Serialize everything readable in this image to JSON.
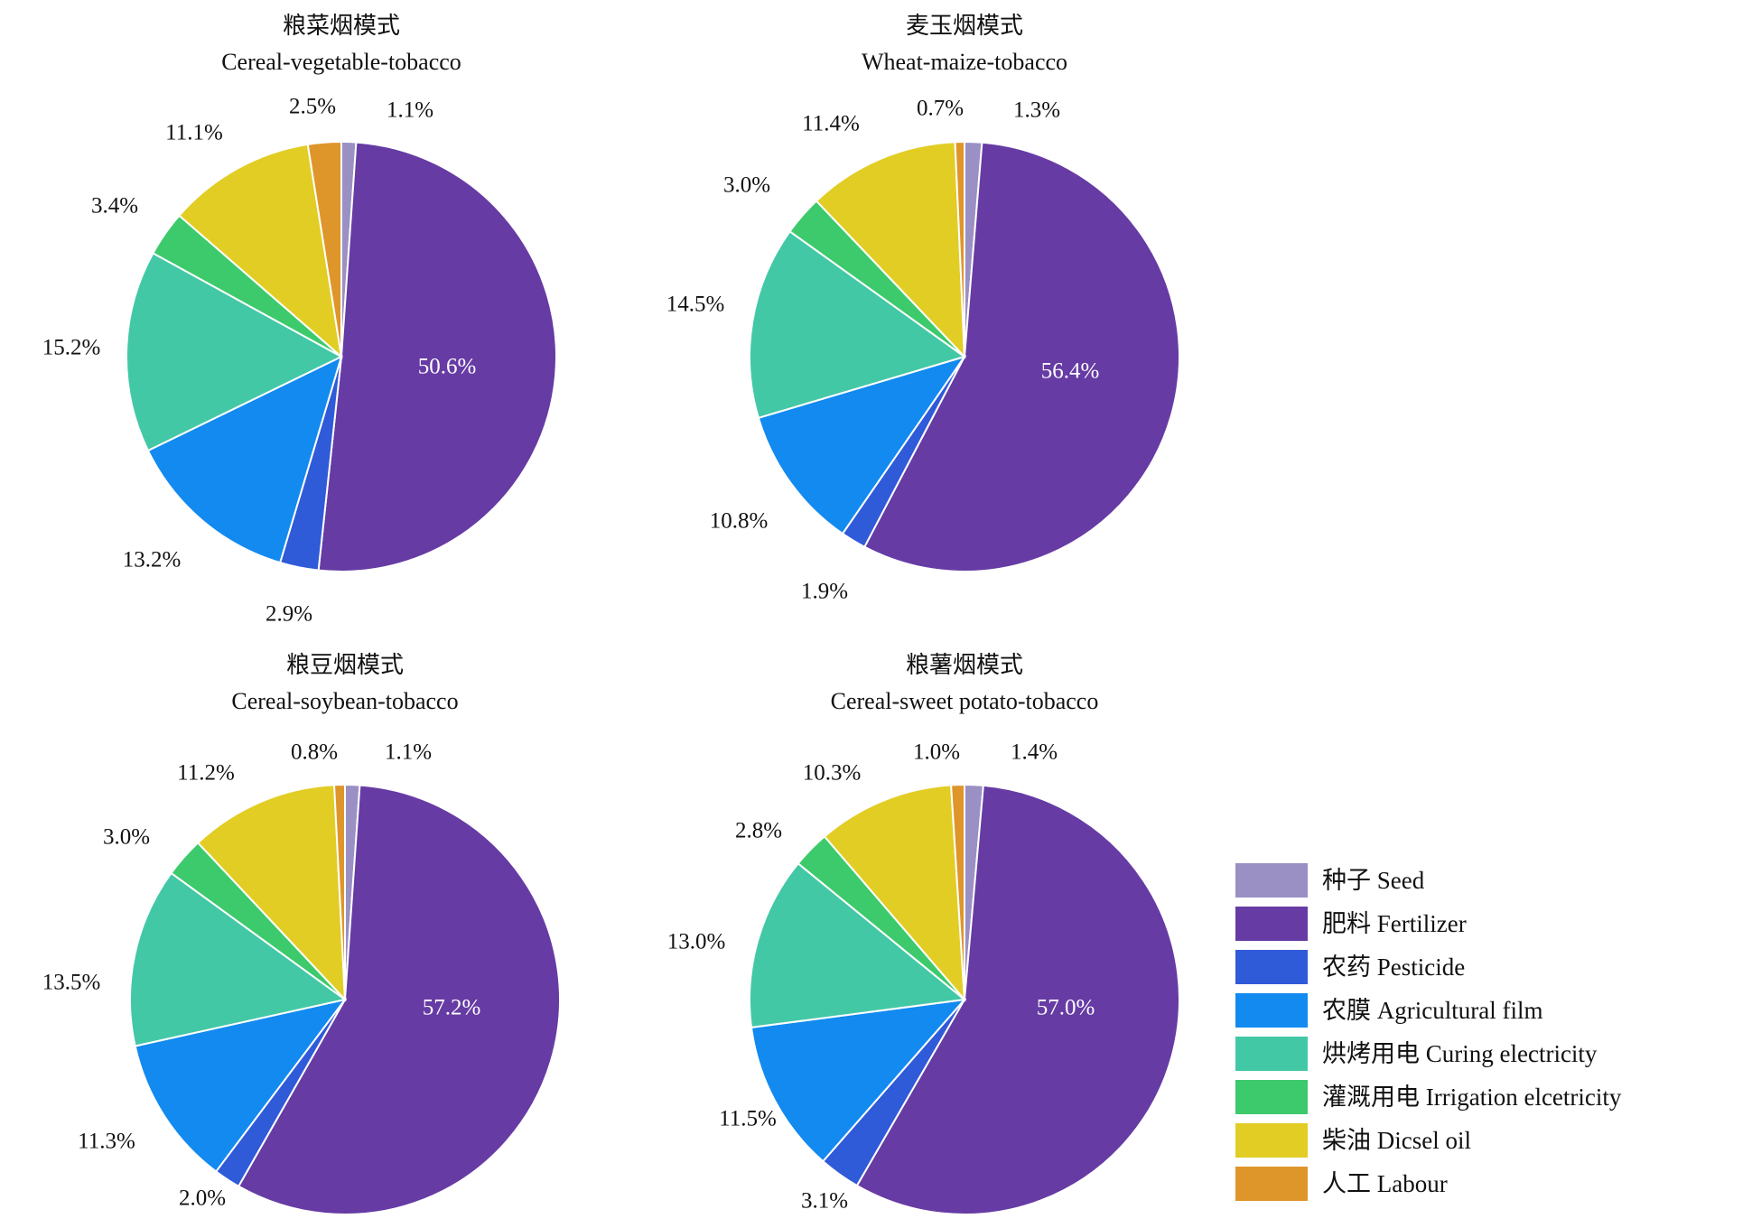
{
  "categories": [
    "种子 Seed",
    "肥料 Fertilizer",
    "农药 Pesticide",
    "农膜 Agricultural film",
    "烘烤用电 Curing electricity",
    "灌溉用电 Irrigation elcetricity",
    "柴油 Dicsel oil",
    "人工 Labour"
  ],
  "colors": [
    "#9a90c4",
    "#663ba4",
    "#2f5ad8",
    "#128af0",
    "#43c8a6",
    "#3dca6c",
    "#e2cd25",
    "#de962a"
  ],
  "chart_data": [
    {
      "type": "pie",
      "title": "粮菜烟模式",
      "subtitle": "Cereal-vegetable-tobacco",
      "values": [
        1.1,
        50.6,
        2.9,
        13.2,
        15.2,
        3.4,
        11.1,
        2.5
      ],
      "labels": [
        "1.1%",
        "50.6%",
        "2.9%",
        "13.2%",
        "15.2%",
        "3.4%",
        "11.1%",
        "2.5%"
      ]
    },
    {
      "type": "pie",
      "title": "麦玉烟模式",
      "subtitle": "Wheat-maize-tobacco",
      "values": [
        1.3,
        56.4,
        1.9,
        10.8,
        14.5,
        3.0,
        11.4,
        0.7
      ],
      "labels": [
        "1.3%",
        "56.4%",
        "1.9%",
        "10.8%",
        "14.5%",
        "3.0%",
        "11.4%",
        "0.7%"
      ]
    },
    {
      "type": "pie",
      "title": "粮豆烟模式",
      "subtitle": "Cereal-soybean-tobacco",
      "values": [
        1.1,
        57.2,
        2.0,
        11.3,
        13.5,
        3.0,
        11.2,
        0.8
      ],
      "labels": [
        "1.1%",
        "57.2%",
        "2.0%",
        "11.3%",
        "13.5%",
        "3.0%",
        "11.2%",
        "0.8%"
      ]
    },
    {
      "type": "pie",
      "title": "粮薯烟模式",
      "subtitle": "Cereal-sweet potato-tobacco",
      "values": [
        1.4,
        57.0,
        3.1,
        11.5,
        13.0,
        2.8,
        10.3,
        1.0
      ],
      "labels": [
        "1.4%",
        "57.0%",
        "3.1%",
        "11.5%",
        "13.0%",
        "2.8%",
        "10.3%",
        "1.0%"
      ]
    }
  ]
}
